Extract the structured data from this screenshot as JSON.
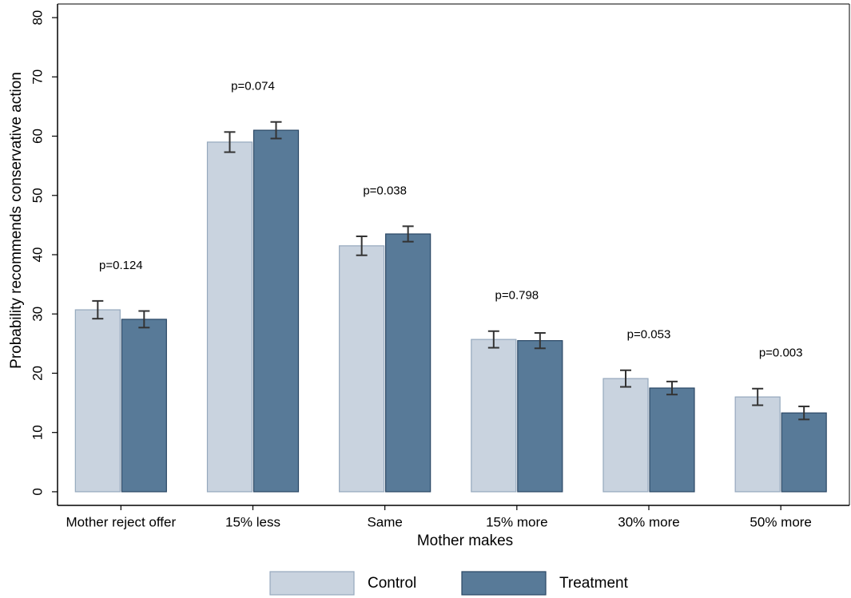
{
  "chart_data": {
    "type": "bar",
    "x_label": "Mother makes",
    "y_label": "Probability recommends conservative action",
    "categories": [
      "Mother reject offer",
      "15% less",
      "Same",
      "15% more",
      "30% more",
      "50% more"
    ],
    "series": [
      {
        "name": "Control",
        "color": "#c9d3df",
        "edge": "#95a8bd",
        "values": [
          30.7,
          59.0,
          41.5,
          25.7,
          19.1,
          16.0
        ],
        "errors": [
          1.5,
          1.7,
          1.6,
          1.4,
          1.4,
          1.4
        ]
      },
      {
        "name": "Treatment",
        "color": "#587a98",
        "edge": "#2a4765",
        "values": [
          29.1,
          61.0,
          43.5,
          25.5,
          17.5,
          13.3
        ],
        "errors": [
          1.4,
          1.4,
          1.3,
          1.3,
          1.1,
          1.1
        ]
      }
    ],
    "annotations": [
      "p=0.124",
      "p=0.074",
      "p=0.038",
      "p=0.798",
      "p=0.053",
      "p=0.003"
    ],
    "ylim": [
      -2.3,
      82.3
    ],
    "yticks": [
      0,
      10,
      20,
      30,
      40,
      50,
      60,
      70,
      80
    ]
  }
}
